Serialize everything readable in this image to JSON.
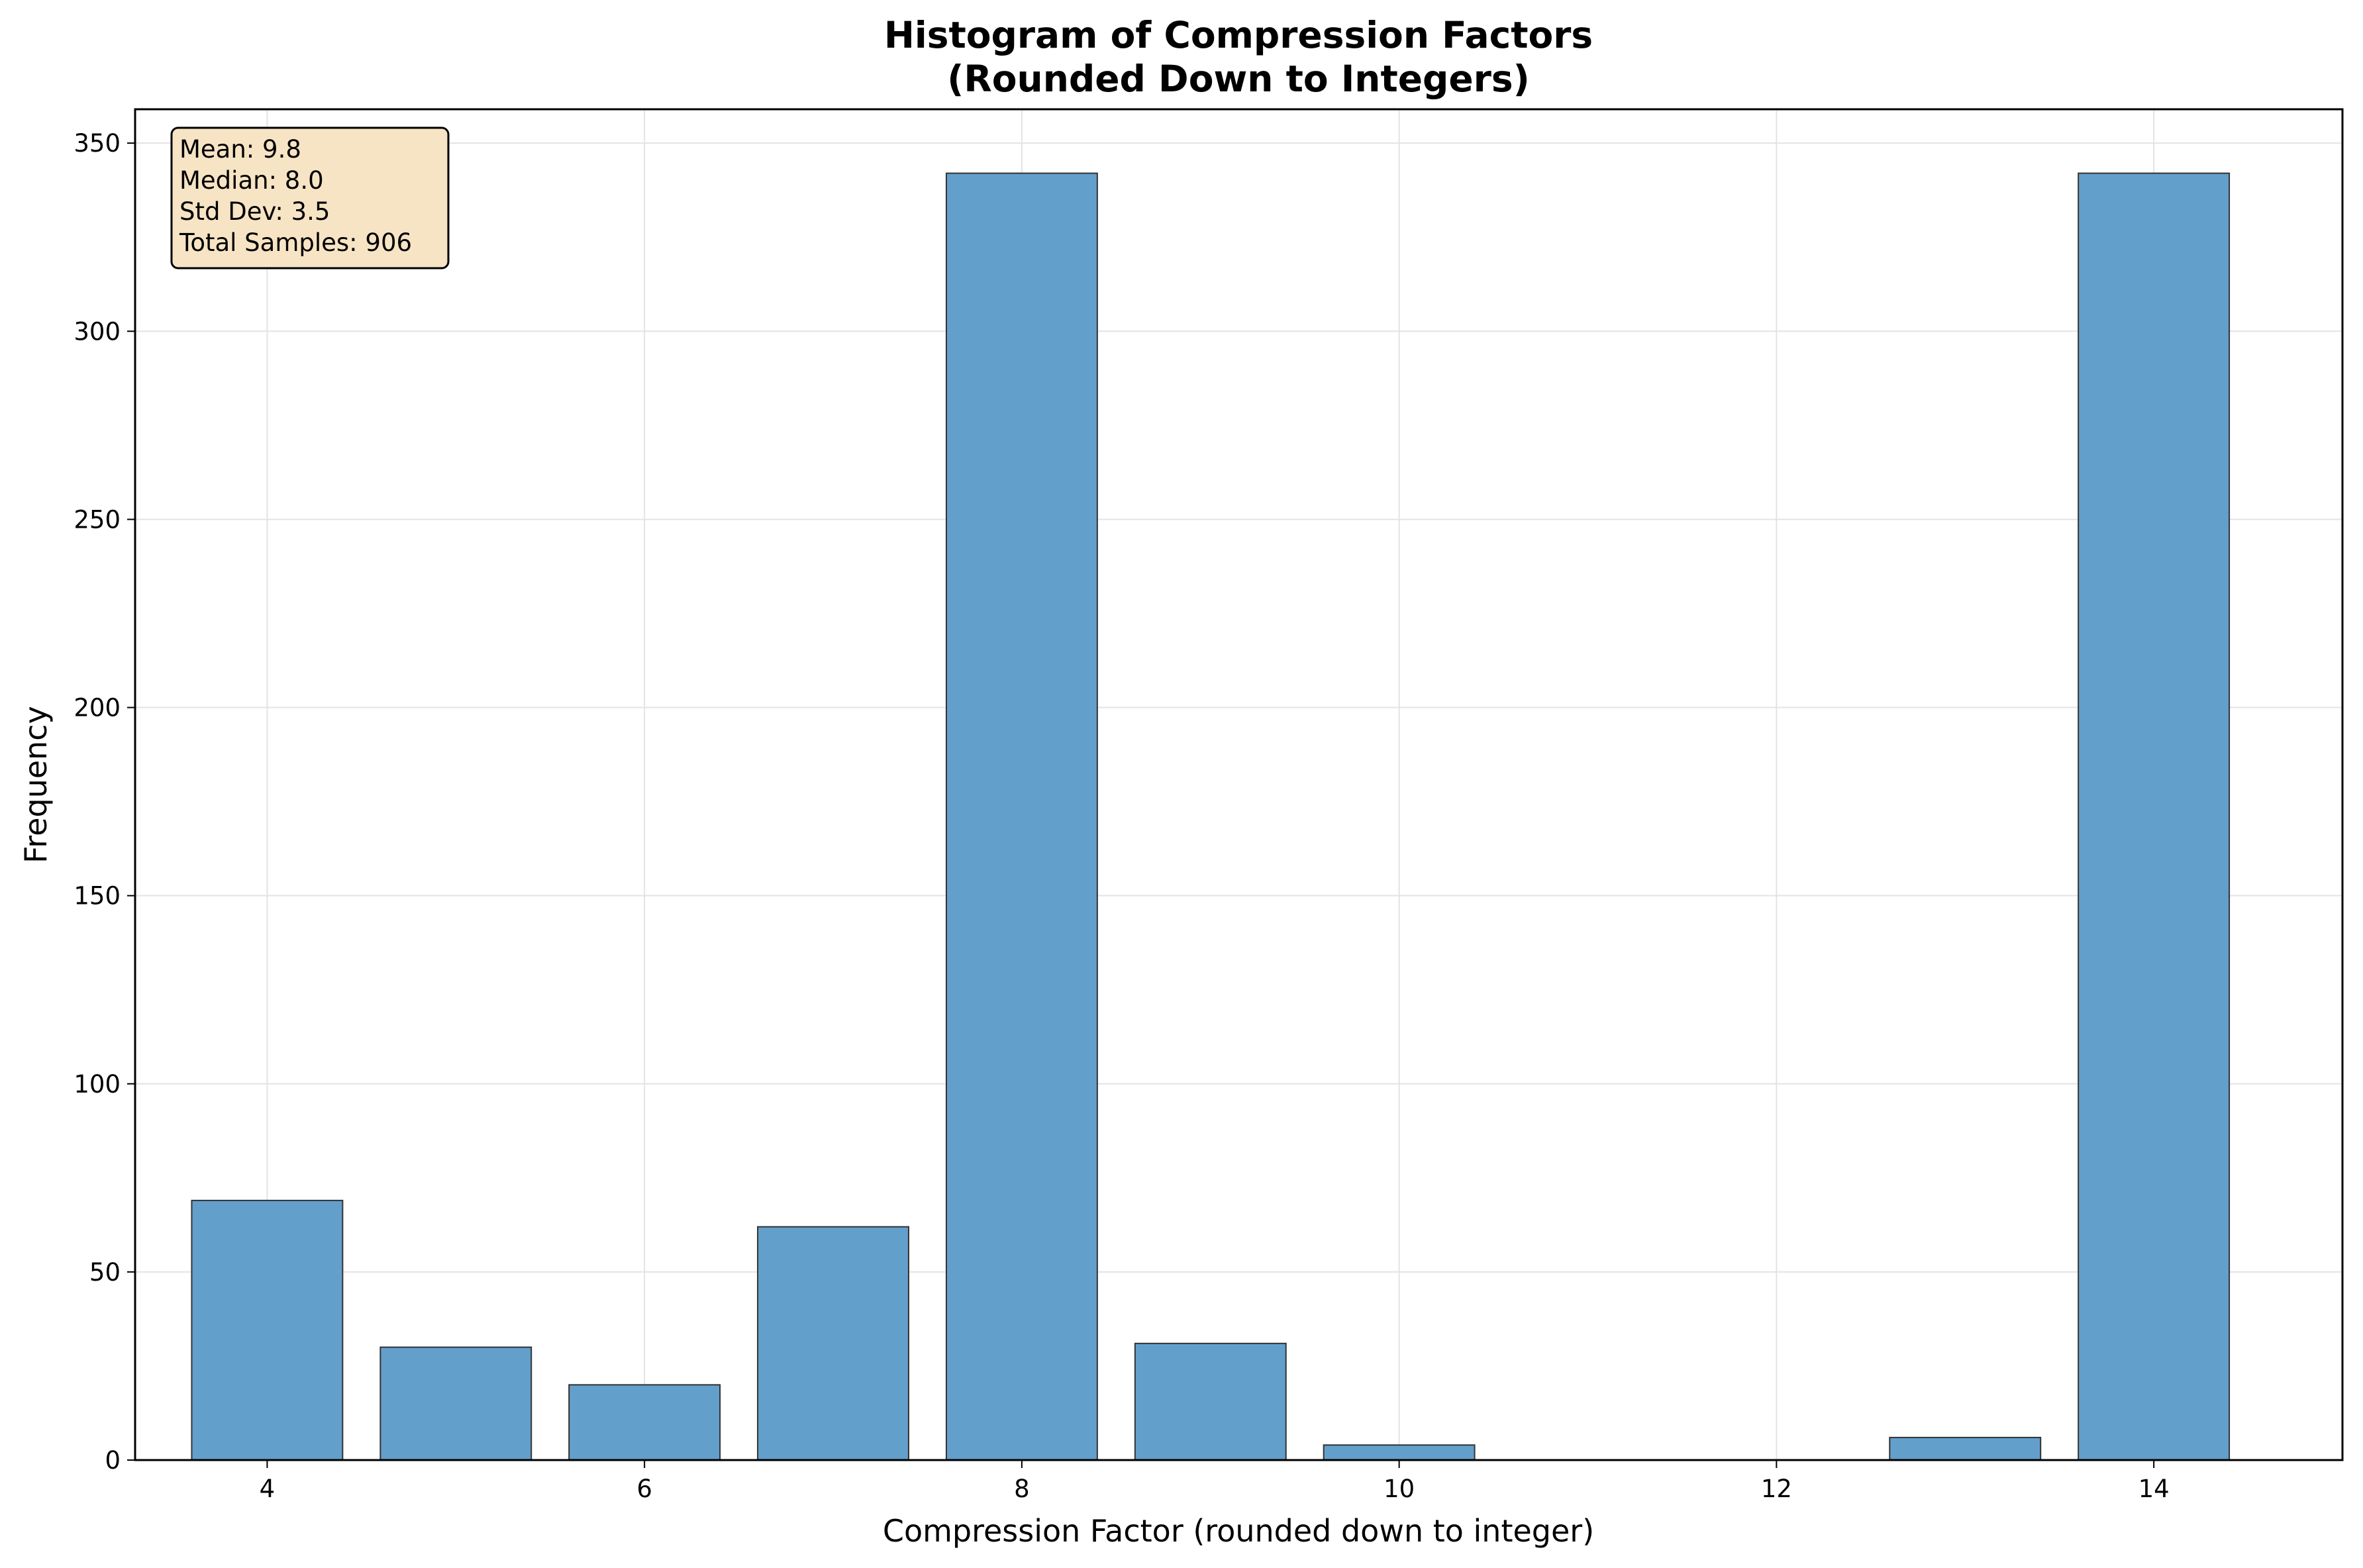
{
  "chart_data": {
    "type": "bar",
    "title": [
      "Histogram of Compression Factors",
      "(Rounded Down to Integers)"
    ],
    "xlabel": "Compression Factor (rounded down to integer)",
    "ylabel": "Frequency",
    "xlim": [
      3.3,
      15
    ],
    "ylim": [
      0,
      359
    ],
    "xticks": [
      4,
      6,
      8,
      10,
      12,
      14
    ],
    "yticks": [
      0,
      50,
      100,
      150,
      200,
      250,
      300,
      350
    ],
    "grid": true,
    "bar_color": "#639fcb",
    "bar_edge_color": "#333333",
    "bar_width": 0.8,
    "bins": [
      {
        "x": 4,
        "value": 69
      },
      {
        "x": 5,
        "value": 30
      },
      {
        "x": 6,
        "value": 20
      },
      {
        "x": 7,
        "value": 62
      },
      {
        "x": 8,
        "value": 342
      },
      {
        "x": 9,
        "value": 31
      },
      {
        "x": 10,
        "value": 4
      },
      {
        "x": 11,
        "value": 0
      },
      {
        "x": 12,
        "value": 0
      },
      {
        "x": 13,
        "value": 6
      },
      {
        "x": 14,
        "value": 342
      }
    ],
    "stats_box": {
      "background": "#f7e4c5",
      "lines": [
        "Mean: 9.8",
        "Median: 8.0",
        "Std Dev: 3.5",
        "Total Samples: 906"
      ]
    }
  }
}
